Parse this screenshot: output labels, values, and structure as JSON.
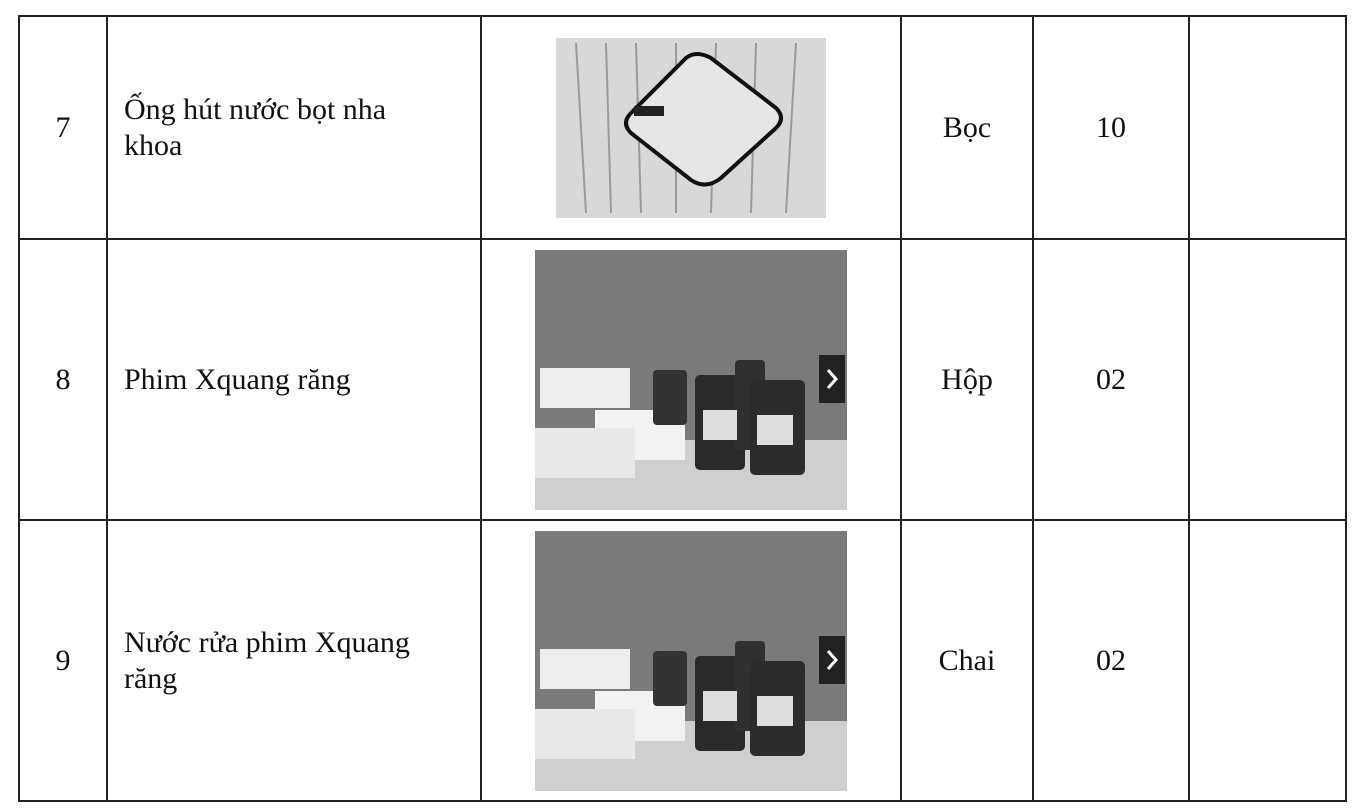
{
  "table": {
    "rows": [
      [
        "7",
        "Ống hút nước bọt nha khoa",
        "Bọc",
        "10"
      ],
      [
        "8",
        "Phim Xquang răng",
        "Hộp",
        "02"
      ],
      [
        "9",
        "Nước rửa phim Xquang răng",
        "Chai",
        "02"
      ]
    ]
  }
}
